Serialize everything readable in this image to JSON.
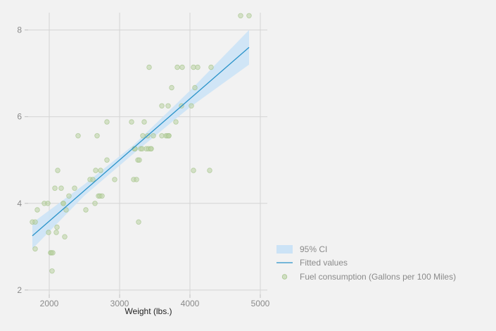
{
  "chart_data": {
    "type": "scatter",
    "title": "",
    "xlabel": "Weight (lbs.)",
    "ylabel": "",
    "xlim": [
      1700,
      5100
    ],
    "ylim": [
      1.9,
      8.4
    ],
    "xticks": [
      "2000",
      "3000",
      "4000",
      "5000"
    ],
    "yticks": [
      "2",
      "4",
      "6",
      "8"
    ],
    "grid": true,
    "legend_position": "bottom-right",
    "colors": {
      "ci_fill": "#cce3f6",
      "fit_line": "#2a93c9",
      "points": "#b9d2a3"
    },
    "legend": {
      "ci": "95% CI",
      "fit": "Fitted values",
      "points": "Fuel consumption (Gallons per 100 Miles)"
    },
    "fit_line": {
      "x": [
        1760,
        4840
      ],
      "y": [
        3.25,
        7.6
      ]
    },
    "ci_band": {
      "x": [
        1760,
        2500,
        3200,
        4000,
        4840
      ],
      "lower": [
        2.95,
        4.18,
        5.15,
        6.22,
        7.2
      ],
      "upper": [
        3.55,
        4.44,
        5.35,
        6.6,
        8.0
      ]
    },
    "series": [
      {
        "x": [
          1760,
          1800,
          1800,
          1830,
          1930,
          1990,
          1980,
          2020,
          2040,
          2030,
          2050,
          2080,
          2110,
          2100,
          2120,
          2170,
          2200,
          2200,
          2220,
          2240,
          2280,
          2360,
          2410,
          2520,
          2580,
          2620,
          2650,
          2660,
          2680,
          2700,
          2720,
          2730,
          2750,
          2820,
          2820,
          2930,
          3170,
          3200,
          3210,
          3220,
          3240,
          3260,
          3270,
          3280,
          3300,
          3320,
          3330,
          3350,
          3380,
          3400,
          3410,
          3420,
          3440,
          3450,
          3480,
          3600,
          3600,
          3660,
          3680,
          3690,
          3700,
          3700,
          3740,
          3800,
          3820,
          3880,
          3890,
          4020,
          4050,
          4050,
          4070,
          4110,
          4280,
          4300,
          4720,
          4840
        ],
        "y": [
          3.57,
          3.57,
          2.95,
          3.85,
          4.0,
          3.33,
          4.0,
          2.86,
          2.44,
          2.86,
          2.86,
          4.35,
          3.45,
          3.33,
          4.76,
          4.35,
          4.0,
          4.0,
          3.23,
          3.85,
          4.17,
          4.35,
          5.56,
          3.85,
          4.55,
          4.55,
          4.0,
          4.76,
          5.56,
          4.17,
          4.17,
          4.76,
          4.17,
          5.0,
          5.88,
          4.55,
          5.88,
          4.55,
          5.26,
          5.26,
          4.55,
          5.0,
          3.57,
          5.0,
          5.26,
          5.26,
          5.56,
          5.88,
          5.26,
          5.56,
          5.26,
          7.14,
          5.26,
          5.26,
          5.56,
          5.56,
          6.25,
          5.56,
          5.56,
          6.25,
          5.56,
          5.56,
          6.67,
          5.88,
          7.14,
          6.25,
          7.14,
          6.25,
          4.76,
          7.14,
          6.67,
          7.14,
          4.76,
          7.14,
          8.33,
          8.33
        ]
      }
    ]
  }
}
